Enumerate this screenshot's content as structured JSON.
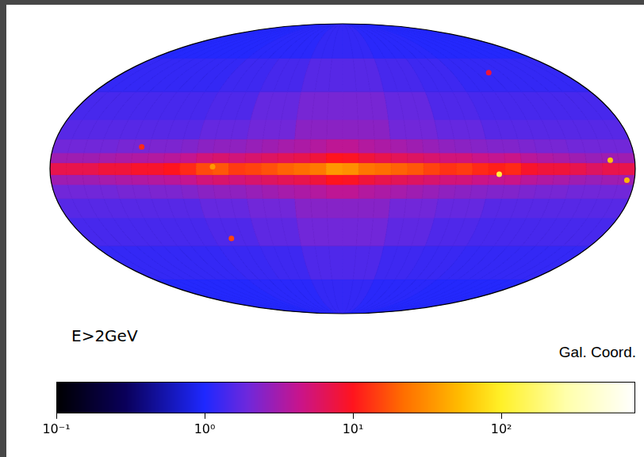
{
  "chart_data": {
    "type": "heatmap",
    "annotations": [
      "E>2GeV",
      "Gal. Coord."
    ],
    "xlim": [
      180,
      -180
    ],
    "ylim": [
      -90,
      90
    ],
    "tick_labels": false,
    "grid": false,
    "x_bins": [
      180,
      170,
      160,
      150,
      140,
      130,
      120,
      110,
      100,
      90,
      80,
      70,
      60,
      50,
      40,
      30,
      20,
      10,
      0,
      -10,
      -20,
      -30,
      -40,
      -50,
      -60,
      -70,
      -80,
      -90,
      -100,
      -110,
      -120,
      -130,
      -140,
      -150,
      -160,
      -170,
      -180
    ],
    "y_bins": [
      -90,
      -60,
      -40,
      -25,
      -15,
      -8,
      -3,
      3,
      8,
      15,
      25,
      40,
      60,
      90
    ],
    "cells": [
      [
        1.05,
        1.05,
        1.05,
        1.05,
        1.05,
        1.05,
        1.05,
        1.05,
        1.05,
        1.1,
        1.1,
        1.1,
        1.1,
        1.1,
        1.1,
        1.2,
        1.2,
        1.2,
        1.2,
        1.2,
        1.2,
        1.1,
        1.1,
        1.1,
        1.1,
        1.1,
        1.1,
        1.05,
        1.05,
        1.05,
        1.05,
        1.05,
        1.05,
        1.05,
        1.05,
        1.05
      ],
      [
        1.2,
        1.2,
        1.2,
        1.2,
        1.2,
        1.2,
        1.2,
        1.2,
        1.2,
        1.25,
        1.25,
        1.25,
        1.3,
        1.3,
        1.3,
        1.5,
        1.5,
        1.5,
        1.5,
        1.5,
        1.5,
        1.3,
        1.3,
        1.3,
        1.25,
        1.25,
        1.25,
        1.2,
        1.2,
        1.2,
        1.2,
        1.2,
        1.2,
        1.2,
        1.2,
        1.2
      ],
      [
        1.4,
        1.4,
        1.4,
        1.4,
        1.4,
        1.4,
        1.4,
        1.4,
        1.4,
        1.5,
        1.5,
        1.5,
        1.7,
        1.7,
        1.7,
        2.0,
        2.0,
        2.0,
        2.0,
        2.0,
        2.0,
        1.7,
        1.7,
        1.7,
        1.5,
        1.5,
        1.5,
        1.4,
        1.4,
        1.4,
        1.4,
        1.4,
        1.4,
        1.4,
        1.4,
        1.4
      ],
      [
        1.6,
        1.6,
        1.6,
        1.6,
        1.6,
        1.6,
        1.6,
        1.6,
        1.6,
        1.8,
        1.8,
        1.8,
        2.0,
        2.0,
        2.0,
        2.4,
        2.4,
        2.4,
        2.4,
        2.4,
        2.4,
        2.0,
        2.0,
        2.0,
        1.8,
        1.8,
        1.8,
        1.6,
        1.6,
        1.6,
        1.6,
        1.6,
        1.6,
        1.6,
        1.6,
        1.6
      ],
      [
        2,
        2,
        2,
        2,
        2.1,
        2.1,
        2.2,
        2.2,
        2.3,
        2.5,
        2.6,
        2.6,
        2.8,
        3,
        3.2,
        3.4,
        3.6,
        4,
        4,
        3.6,
        3.4,
        3.2,
        3,
        2.8,
        2.6,
        2.5,
        2.4,
        2.3,
        2.3,
        2.2,
        2.1,
        2.1,
        2,
        2,
        2,
        2
      ],
      [
        3,
        3,
        3,
        3.2,
        3.4,
        3.5,
        3.6,
        3.8,
        4.2,
        5,
        5.5,
        5,
        5.5,
        6,
        6.5,
        7,
        8,
        10,
        9.5,
        8,
        7,
        6.5,
        6,
        5.5,
        5,
        5,
        4.5,
        4.2,
        4.5,
        3.8,
        3.5,
        3.3,
        3,
        2.8,
        3,
        3
      ],
      [
        7,
        7,
        7,
        8,
        8,
        9,
        9,
        10,
        12,
        16,
        18,
        14,
        15,
        17,
        20,
        22,
        25,
        35,
        32,
        24,
        22,
        20,
        18,
        15,
        13,
        14,
        12,
        11,
        12,
        9,
        8,
        8,
        7,
        6,
        7,
        7
      ],
      [
        3,
        3,
        3,
        3.2,
        3.4,
        3.5,
        3.6,
        3.8,
        4.2,
        5,
        5.5,
        5,
        5.5,
        6,
        6.5,
        7,
        8,
        10,
        9.5,
        8,
        7,
        6.5,
        6,
        5.5,
        5,
        5,
        4.5,
        4.2,
        4.5,
        3.8,
        3.5,
        3.3,
        3,
        2.8,
        3,
        3
      ],
      [
        2,
        2,
        2,
        2,
        2.1,
        2.1,
        2.2,
        2.2,
        2.3,
        2.5,
        2.6,
        2.6,
        2.8,
        3,
        3.2,
        3.4,
        3.6,
        4,
        4,
        3.6,
        3.4,
        3.2,
        3,
        2.8,
        2.6,
        2.5,
        2.4,
        2.3,
        2.3,
        2.2,
        2.1,
        2.1,
        2,
        2,
        2,
        2
      ],
      [
        1.6,
        1.6,
        1.6,
        1.6,
        1.6,
        1.6,
        1.6,
        1.6,
        1.6,
        1.8,
        1.8,
        1.8,
        2.0,
        2.0,
        2.0,
        2.5,
        2.5,
        2.5,
        2.5,
        2.5,
        2.5,
        2.0,
        2.0,
        2.0,
        1.8,
        1.8,
        1.8,
        1.6,
        1.6,
        1.6,
        1.6,
        1.6,
        1.6,
        1.6,
        1.6,
        1.6
      ],
      [
        1.4,
        1.4,
        1.4,
        1.4,
        1.4,
        1.4,
        1.4,
        1.4,
        1.4,
        1.5,
        1.5,
        1.5,
        1.8,
        1.8,
        1.8,
        2.1,
        2.1,
        2.1,
        2.1,
        2.1,
        2.1,
        1.8,
        1.8,
        1.8,
        1.5,
        1.5,
        1.5,
        1.4,
        1.4,
        1.4,
        1.4,
        1.4,
        1.4,
        1.4,
        1.4,
        1.4
      ],
      [
        1.2,
        1.2,
        1.2,
        1.2,
        1.2,
        1.2,
        1.2,
        1.2,
        1.2,
        1.3,
        1.3,
        1.3,
        1.4,
        1.4,
        1.4,
        1.6,
        1.6,
        1.6,
        1.6,
        1.6,
        1.6,
        1.4,
        1.4,
        1.4,
        1.3,
        1.3,
        1.3,
        1.2,
        1.2,
        1.2,
        1.2,
        1.2,
        1.2,
        1.2,
        1.2,
        1.2
      ],
      [
        1.05,
        1.05,
        1.05,
        1.05,
        1.05,
        1.05,
        1.05,
        1.05,
        1.05,
        1.1,
        1.1,
        1.1,
        1.1,
        1.1,
        1.1,
        1.2,
        1.2,
        1.2,
        1.2,
        1.2,
        1.2,
        1.1,
        1.1,
        1.1,
        1.1,
        1.1,
        1.1,
        1.05,
        1.05,
        1.05,
        1.05,
        1.05,
        1.05,
        1.05,
        1.05,
        1.05
      ]
    ],
    "sources": [
      {
        "lon": -96.4,
        "lat": -2.8,
        "value": 120
      },
      {
        "lon": -164.9,
        "lat": 4.3,
        "value": 60
      },
      {
        "lon": -175.4,
        "lat": -5.8,
        "value": 50
      },
      {
        "lon": 80,
        "lat": 1,
        "value": 35
      },
      {
        "lon": 78,
        "lat": -36,
        "value": 15
      },
      {
        "lon": 125,
        "lat": 11,
        "value": 12
      },
      {
        "lon": -120,
        "lat": 51,
        "value": 8
      }
    ],
    "colorbar": {
      "range": [
        0.1,
        800
      ],
      "log": true,
      "ticks": [
        {
          "value": 0.1,
          "label": "10⁻¹"
        },
        {
          "value": 1,
          "label": "10⁰"
        },
        {
          "value": 10,
          "label": "10¹"
        },
        {
          "value": 100,
          "label": "10²"
        }
      ]
    }
  }
}
